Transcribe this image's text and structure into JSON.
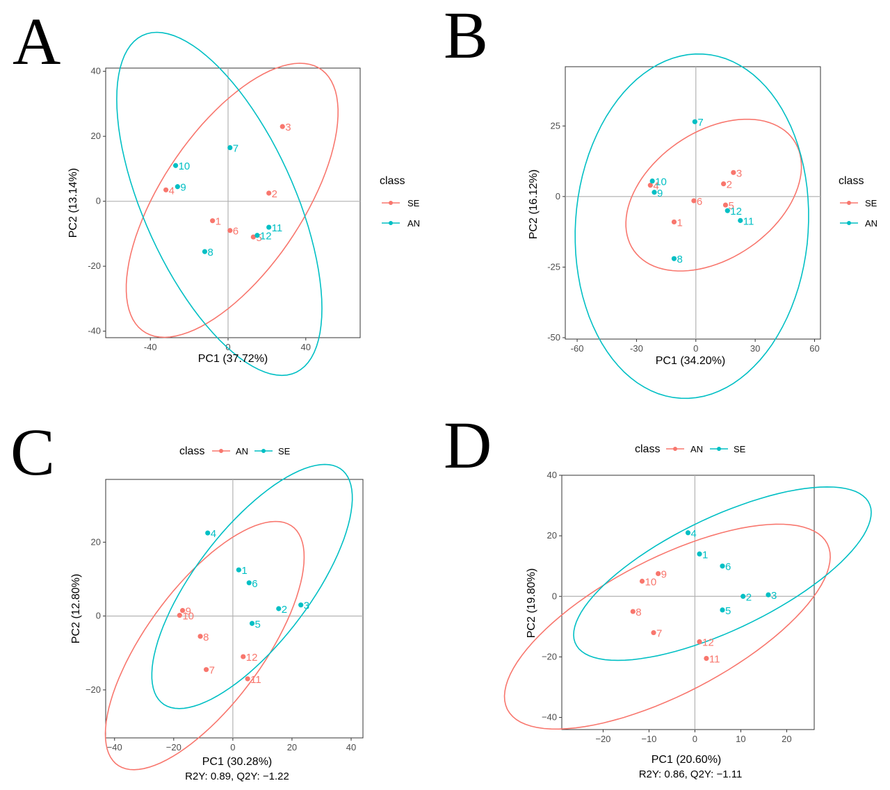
{
  "colors": {
    "red": "#F8766D",
    "teal": "#00BFC4"
  },
  "chart_data": [
    {
      "type": "scatter",
      "panel": "A",
      "xlabel": "PC1 (37.72%)",
      "ylabel": "PC2 (13.14%)",
      "subtitle": "",
      "xlim": [
        -63,
        68
      ],
      "ylim": [
        -42,
        41
      ],
      "xticks": [
        -40,
        0,
        40
      ],
      "yticks": [
        -40,
        -20,
        0,
        20,
        40
      ],
      "xtick_labels": [
        "-40",
        "0",
        "40"
      ],
      "ytick_labels": [
        "-40",
        "-20",
        "0",
        "20",
        "40"
      ],
      "grid": true,
      "legend": {
        "title": "class",
        "position": "right",
        "entries": [
          {
            "label": "SE",
            "color": "#F8766D"
          },
          {
            "label": "AN",
            "color": "#00BFC4"
          }
        ]
      },
      "series": [
        {
          "name": "SE",
          "color": "#F8766D",
          "points": [
            {
              "label": "1",
              "x": -8,
              "y": -6
            },
            {
              "label": "2",
              "x": 21,
              "y": 2.5
            },
            {
              "label": "3",
              "x": 28,
              "y": 23
            },
            {
              "label": "4",
              "x": -32,
              "y": 3.5
            },
            {
              "label": "5",
              "x": 13,
              "y": -11
            },
            {
              "label": "6",
              "x": 1,
              "y": -9
            }
          ],
          "ellipse": {
            "cx": 2.1,
            "cy": 0.3,
            "rx": 63,
            "ry": 28,
            "angle_deg": 34
          }
        },
        {
          "name": "AN",
          "color": "#00BFC4",
          "points": [
            {
              "label": "7",
              "x": 1,
              "y": 16.5
            },
            {
              "label": "8",
              "x": -12,
              "y": -15.5
            },
            {
              "label": "9",
              "x": -26,
              "y": 4.5
            },
            {
              "label": "10",
              "x": -27,
              "y": 11
            },
            {
              "label": "11",
              "x": 21,
              "y": -8
            },
            {
              "label": "12",
              "x": 15,
              "y": -10.5
            }
          ],
          "ellipse": {
            "cx": -4.5,
            "cy": -0.8,
            "rx": 67,
            "ry": 33,
            "angle_deg": -45
          }
        }
      ]
    },
    {
      "type": "scatter",
      "panel": "B",
      "xlabel": "PC1 (34.20%)",
      "ylabel": "PC2 (16.12%)",
      "subtitle": "",
      "xlim": [
        -66,
        63
      ],
      "ylim": [
        -50.5,
        46
      ],
      "xticks": [
        -60,
        -30,
        0,
        30,
        60
      ],
      "yticks": [
        -50,
        -25,
        0,
        25
      ],
      "xtick_labels": [
        "-60",
        "-30",
        "0",
        "30",
        "60"
      ],
      "ytick_labels": [
        "-50",
        "-25",
        "0",
        "25"
      ],
      "grid": true,
      "legend": {
        "title": "class",
        "position": "right",
        "entries": [
          {
            "label": "SE",
            "color": "#F8766D"
          },
          {
            "label": "AN",
            "color": "#00BFC4"
          }
        ]
      },
      "series": [
        {
          "name": "SE",
          "color": "#F8766D",
          "points": [
            {
              "label": "1",
              "x": -11,
              "y": -9
            },
            {
              "label": "2",
              "x": 14,
              "y": 4.5
            },
            {
              "label": "3",
              "x": 19,
              "y": 8.5
            },
            {
              "label": "4",
              "x": -23,
              "y": 4
            },
            {
              "label": "5",
              "x": 15,
              "y": -3
            },
            {
              "label": "6",
              "x": -1,
              "y": -1.5
            }
          ],
          "ellipse": {
            "cx": 9,
            "cy": 0.5,
            "rx": 46,
            "ry": 24,
            "angle_deg": 18
          }
        },
        {
          "name": "AN",
          "color": "#00BFC4",
          "points": [
            {
              "label": "7",
              "x": -0.5,
              "y": 26.5
            },
            {
              "label": "8",
              "x": -11,
              "y": -22
            },
            {
              "label": "9",
              "x": -21,
              "y": 1.5
            },
            {
              "label": "10",
              "x": -22,
              "y": 5.5
            },
            {
              "label": "11",
              "x": 22.5,
              "y": -8.5
            },
            {
              "label": "12",
              "x": 16,
              "y": -5
            }
          ],
          "ellipse": {
            "cx": -2,
            "cy": -10.5,
            "rx": 58,
            "ry": 62,
            "angle_deg": -30
          }
        }
      ]
    },
    {
      "type": "scatter",
      "panel": "C",
      "xlabel": "PC1 (30.28%)",
      "ylabel": "PC2 (12.80%)",
      "subtitle": "R2Y: 0.89, Q2Y: −1.22",
      "xlim": [
        -43,
        44
      ],
      "ylim": [
        -33,
        37
      ],
      "xticks": [
        -40,
        -20,
        0,
        20,
        40
      ],
      "yticks": [
        -20,
        0,
        20
      ],
      "xtick_labels": [
        "−40",
        "−20",
        "0",
        "20",
        "40"
      ],
      "ytick_labels": [
        "−20",
        "0",
        "20"
      ],
      "grid": true,
      "legend": {
        "title": "class",
        "position": "top",
        "entries": [
          {
            "label": "AN",
            "color": "#F8766D"
          },
          {
            "label": "SE",
            "color": "#00BFC4"
          }
        ]
      },
      "series": [
        {
          "name": "AN",
          "color": "#F8766D",
          "points": [
            {
              "label": "7",
              "x": -9,
              "y": -14.5
            },
            {
              "label": "8",
              "x": -11,
              "y": -5.5
            },
            {
              "label": "9",
              "x": -17,
              "y": 1.5
            },
            {
              "label": "10",
              "x": -18,
              "y": 0.2
            },
            {
              "label": "11",
              "x": 5,
              "y": -17
            },
            {
              "label": "12",
              "x": 3.5,
              "y": -11
            }
          ],
          "ellipse": {
            "cx": -9.5,
            "cy": -8,
            "rx": 44,
            "ry": 18,
            "angle_deg": 45
          }
        },
        {
          "name": "SE",
          "color": "#00BFC4",
          "points": [
            {
              "label": "1",
              "x": 2,
              "y": 12.5
            },
            {
              "label": "2",
              "x": 15.5,
              "y": 2
            },
            {
              "label": "3",
              "x": 23,
              "y": 3
            },
            {
              "label": "4",
              "x": -8.5,
              "y": 22.5
            },
            {
              "label": "5",
              "x": 6.5,
              "y": -2
            },
            {
              "label": "6",
              "x": 5.5,
              "y": 9
            }
          ],
          "ellipse": {
            "cx": 6.5,
            "cy": 8,
            "rx": 44,
            "ry": 17.5,
            "angle_deg": 44
          }
        }
      ]
    },
    {
      "type": "scatter",
      "panel": "D",
      "xlabel": "PC1 (20.60%)",
      "ylabel": "PC2 (19.80%)",
      "subtitle": "R2Y: 0.86, Q2Y: −1.11",
      "xlim": [
        -29,
        26
      ],
      "ylim": [
        -44,
        40
      ],
      "xticks": [
        -20,
        -10,
        0,
        10,
        20
      ],
      "yticks": [
        -40,
        -20,
        0,
        20,
        40
      ],
      "xtick_labels": [
        "−20",
        "−10",
        "0",
        "10",
        "20"
      ],
      "ytick_labels": [
        "−40",
        "−20",
        "0",
        "20",
        "40"
      ],
      "grid": true,
      "legend": {
        "title": "class",
        "position": "top",
        "entries": [
          {
            "label": "AN",
            "color": "#F8766D"
          },
          {
            "label": "SE",
            "color": "#00BFC4"
          }
        ]
      },
      "series": [
        {
          "name": "AN",
          "color": "#F8766D",
          "points": [
            {
              "label": "7",
              "x": -9,
              "y": -12
            },
            {
              "label": "8",
              "x": -13.5,
              "y": -5
            },
            {
              "label": "9",
              "x": -8,
              "y": 7.5
            },
            {
              "label": "10",
              "x": -11.5,
              "y": 5
            },
            {
              "label": "11",
              "x": 2.5,
              "y": -20.5
            },
            {
              "label": "12",
              "x": 1,
              "y": -15
            }
          ],
          "ellipse": {
            "cx": -6,
            "cy": -10,
            "rx": 45,
            "ry": 19.5,
            "angle_deg": 43
          }
        },
        {
          "name": "SE",
          "color": "#00BFC4",
          "points": [
            {
              "label": "1",
              "x": 1,
              "y": 14
            },
            {
              "label": "2",
              "x": 10.5,
              "y": 0
            },
            {
              "label": "3",
              "x": 16,
              "y": 0.5
            },
            {
              "label": "4",
              "x": -1.5,
              "y": 21
            },
            {
              "label": "5",
              "x": 6,
              "y": -4.5
            },
            {
              "label": "6",
              "x": 6,
              "y": 10
            }
          ],
          "ellipse": {
            "cx": 6,
            "cy": 7.5,
            "rx": 40,
            "ry": 16.5,
            "angle_deg": 40
          }
        }
      ]
    }
  ]
}
